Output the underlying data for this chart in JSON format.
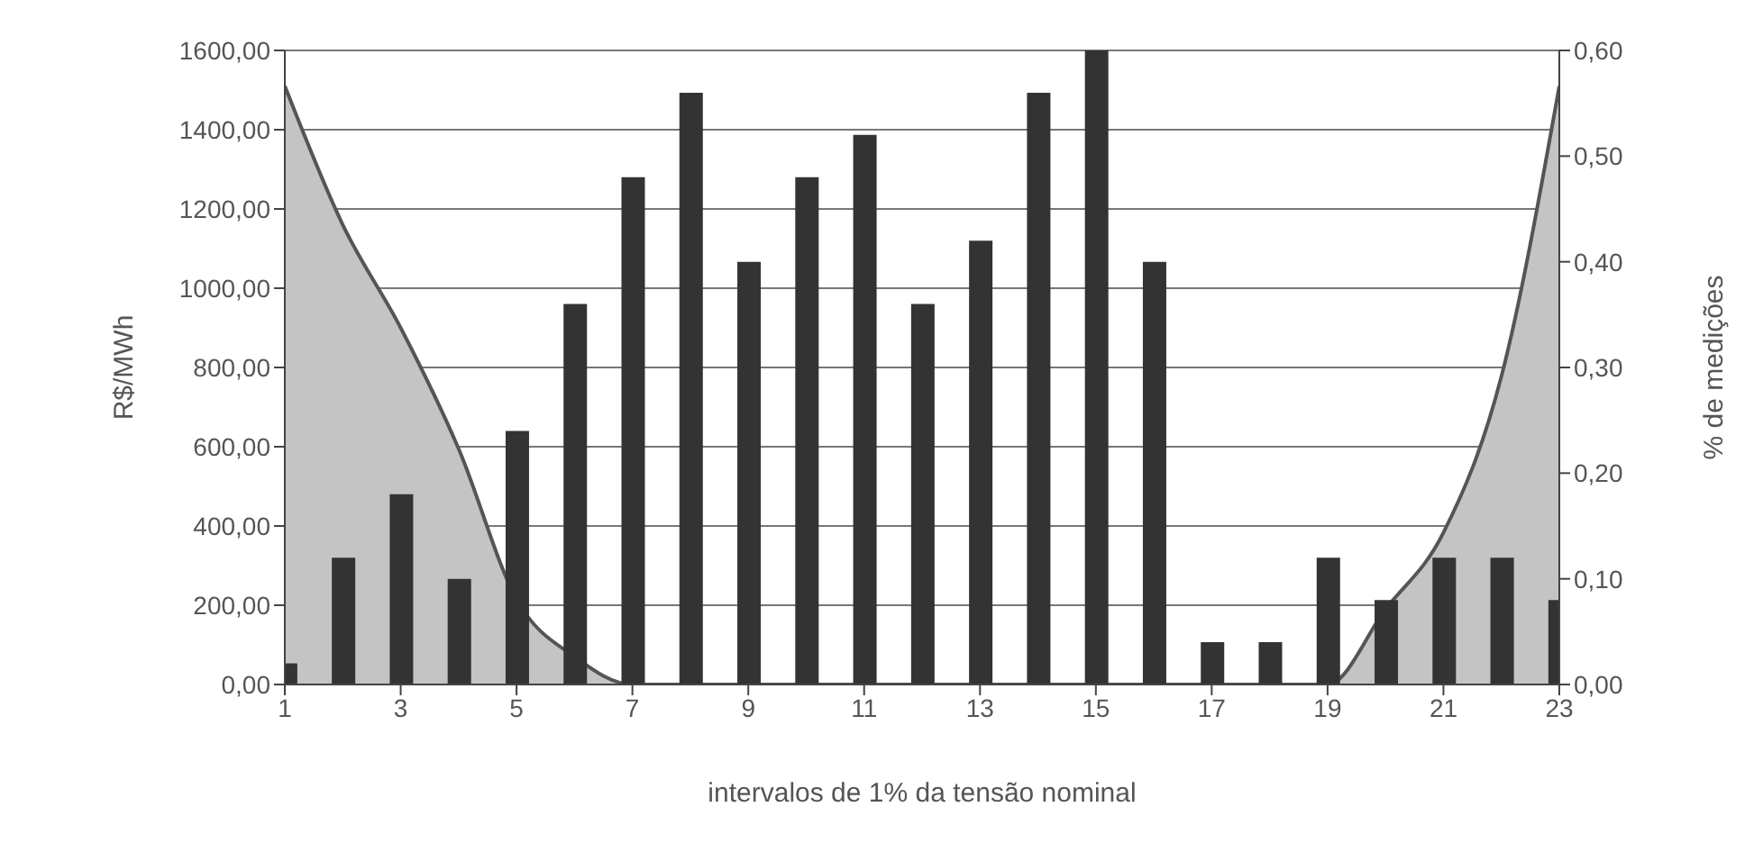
{
  "chart_data": {
    "type": "bar",
    "xlabel": "intervalos de 1% da tensão nominal",
    "ylabel": "R$/MWh",
    "y2label": "% de medições",
    "x": [
      1,
      2,
      3,
      4,
      5,
      6,
      7,
      8,
      9,
      10,
      11,
      12,
      13,
      14,
      15,
      16,
      17,
      18,
      19,
      20,
      21,
      22,
      23
    ],
    "xlim": [
      1,
      23
    ],
    "xticks": [
      1,
      3,
      5,
      7,
      9,
      11,
      13,
      15,
      17,
      19,
      21,
      23
    ],
    "ylim": [
      0,
      1600
    ],
    "yticks": [
      {
        "value": 0,
        "label": "0,00"
      },
      {
        "value": 200,
        "label": "200,00"
      },
      {
        "value": 400,
        "label": "400,00"
      },
      {
        "value": 600,
        "label": "600,00"
      },
      {
        "value": 800,
        "label": "800,00"
      },
      {
        "value": 1000,
        "label": "1000,00"
      },
      {
        "value": 1200,
        "label": "1200,00"
      },
      {
        "value": 1400,
        "label": "1400,00"
      },
      {
        "value": 1600,
        "label": "1600,00"
      }
    ],
    "y2lim": [
      0,
      0.6
    ],
    "y2ticks": [
      {
        "value": 0,
        "label": "0,00"
      },
      {
        "value": 0.1,
        "label": "0,10"
      },
      {
        "value": 0.2,
        "label": "0,20"
      },
      {
        "value": 0.3,
        "label": "0,30"
      },
      {
        "value": 0.4,
        "label": "0,40"
      },
      {
        "value": 0.5,
        "label": "0,50"
      },
      {
        "value": 0.6,
        "label": "0,60"
      }
    ],
    "grid": "y",
    "legend": false,
    "series": [
      {
        "type": "area",
        "color": "#c4c4c4",
        "values": [
          1510,
          1160,
          900,
          595,
          215,
          70,
          0,
          0,
          0,
          0,
          0,
          0,
          0,
          0,
          0,
          0,
          0,
          0,
          0,
          190,
          383,
          777,
          1510
        ]
      },
      {
        "axis": "y2",
        "color": "#333333",
        "values": [
          0.02,
          0.12,
          0.18,
          0.1,
          0.24,
          0.36,
          0.48,
          0.56,
          0.4,
          0.48,
          0.52,
          0.36,
          0.42,
          0.56,
          0.6,
          0.4,
          0.04,
          0.04,
          0.12,
          0.08,
          0.12,
          0.12,
          0.08
        ]
      }
    ]
  }
}
